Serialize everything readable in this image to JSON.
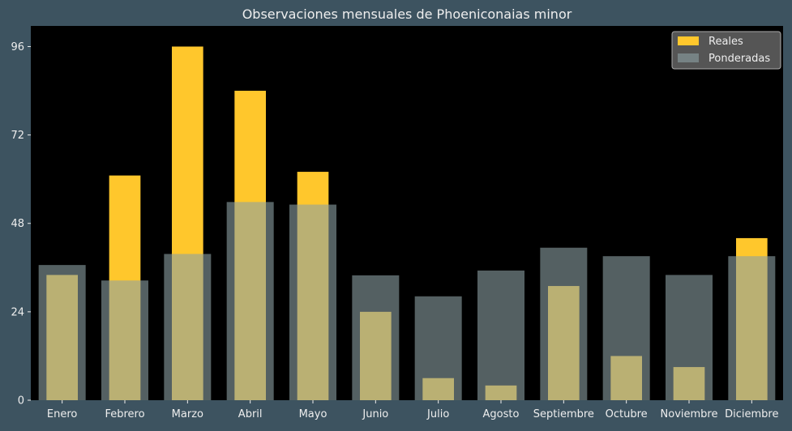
{
  "chart_data": {
    "type": "bar",
    "title": "Observaciones mensuales de Phoeniconaias minor",
    "xlabel": "",
    "ylabel": "",
    "categories": [
      "Enero",
      "Febrero",
      "Marzo",
      "Abril",
      "Mayo",
      "Junio",
      "Julio",
      "Agosto",
      "Septiembre",
      "Octubre",
      "Noviembre",
      "Diciembre"
    ],
    "series": [
      {
        "name": "Reales",
        "values": [
          34,
          61,
          96,
          84,
          62,
          24,
          6,
          4,
          31,
          12,
          9,
          44
        ]
      },
      {
        "name": "Ponderadas",
        "values": [
          36.7,
          32.5,
          39.7,
          53.8,
          53.1,
          33.9,
          28.2,
          35.2,
          41.4,
          39.1,
          34.0,
          39.1
        ]
      }
    ],
    "ylim": [
      0,
      101.6
    ],
    "yticks": [
      "0",
      "24",
      "48",
      "72",
      "96"
    ],
    "grid": false,
    "legend_position": "top-right",
    "colors": {
      "background": "#3d5360",
      "plot_background": "#000000",
      "reales": "#ffc72c",
      "ponderadas": "#8ca0a3",
      "text": "#eeeeee"
    }
  }
}
